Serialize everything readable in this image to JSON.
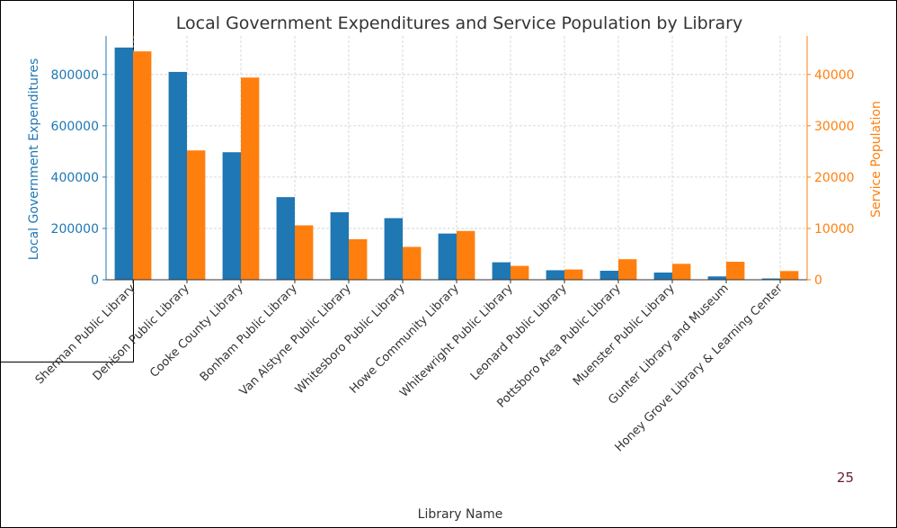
{
  "page_number": "25",
  "chart_data": {
    "type": "bar",
    "title": "Local Government Expenditures and Service Population by Library",
    "xlabel": "Library Name",
    "ylabel_left": "Local Government Expenditures",
    "ylabel_right": "Service Population",
    "categories": [
      "Sherman Public Library",
      "Denison Public Library",
      "Cooke County Library",
      "Bonham Public Library",
      "Van Alstyne Public Library",
      "Whitesboro Public Library",
      "Howe Community Library",
      "Whitewright Public Library",
      "Leonard Public Library",
      "Pottsboro Area Public Library",
      "Muenster Public Library",
      "Gunter Library and Museum",
      "Honey Grove Library & Learning Center"
    ],
    "series": [
      {
        "axis": "left",
        "color": "#1f77b4",
        "values": [
          905000,
          810000,
          497000,
          322000,
          263000,
          240000,
          180000,
          68000,
          37000,
          35000,
          28000,
          13000,
          5000
        ]
      },
      {
        "axis": "right",
        "color": "#ff7f0e",
        "values": [
          44500,
          25200,
          39400,
          10600,
          7900,
          6400,
          9500,
          2700,
          2000,
          4000,
          3100,
          3500,
          1700
        ]
      }
    ],
    "ylim_left": [
      0,
      950000
    ],
    "ylim_right": [
      0,
      47500
    ],
    "yticks_left": [
      "0",
      "200000",
      "400000",
      "600000",
      "800000"
    ],
    "yticks_left_values": [
      0,
      200000,
      400000,
      600000,
      800000
    ],
    "yticks_right": [
      "0",
      "10000",
      "20000",
      "30000",
      "40000"
    ],
    "yticks_right_values": [
      0,
      10000,
      20000,
      30000,
      40000
    ],
    "grid": true,
    "legend": "none"
  }
}
